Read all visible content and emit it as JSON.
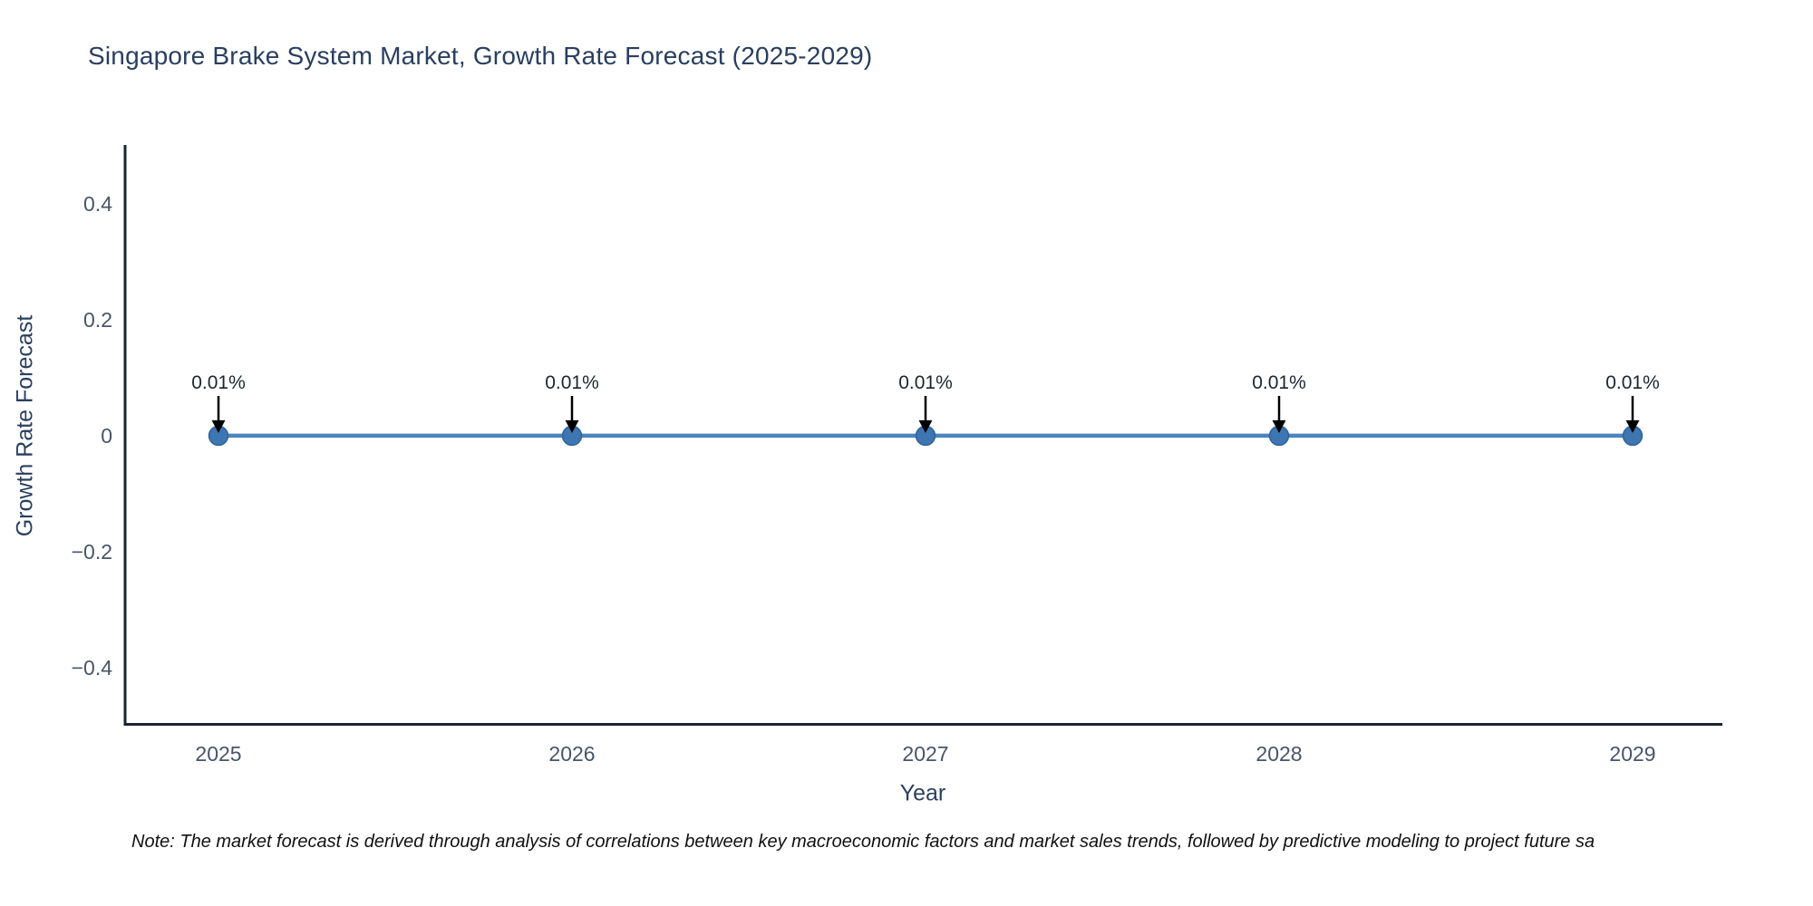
{
  "title": {
    "text": "Singapore Brake System Market, Growth Rate Forecast (2025-2029)"
  },
  "note": {
    "text": "Note: The market forecast is derived through analysis of correlations between key macroeconomic factors and market sales trends, followed by predictive modeling to project future sa"
  },
  "chart_data": {
    "type": "line",
    "title": "Singapore Brake System Market, Growth Rate Forecast (2025-2029)",
    "xlabel": "Year",
    "ylabel": "Growth Rate Forecast",
    "x": [
      2025,
      2026,
      2027,
      2028,
      2029
    ],
    "xtick_labels": [
      "2025",
      "2026",
      "2027",
      "2028",
      "2029"
    ],
    "series": [
      {
        "name": "Growth Rate Forecast",
        "values_percent": [
          0.01,
          0.01,
          0.01,
          0.01,
          0.01
        ]
      }
    ],
    "point_labels": [
      "0.01%",
      "0.01%",
      "0.01%",
      "0.01%",
      "0.01%"
    ],
    "ylim": [
      -0.5,
      0.5
    ],
    "yticks": [
      0.4,
      0.2,
      0,
      -0.2,
      -0.4
    ],
    "ytick_labels": [
      "0.4",
      "0.2",
      "0",
      "−0.2",
      "−0.4"
    ],
    "grid": false,
    "legend": "none",
    "colors": {
      "background": "#ffffff",
      "title": "#2a3f5f",
      "axis_line": "#1a2430",
      "tick_label": "#47556a",
      "axis_title": "#2a3f5f",
      "line": "#4d84bd",
      "marker": "#3d76b0",
      "marker_edge": "#2f639b",
      "annotation_text": "#1c2530",
      "arrow": "#000000",
      "note_text": "#111111"
    }
  }
}
